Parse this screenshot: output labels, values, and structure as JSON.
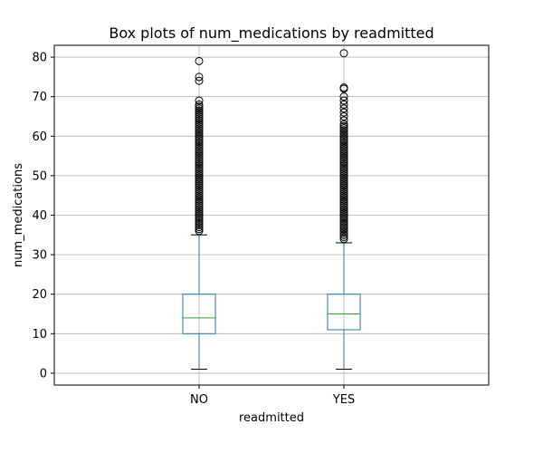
{
  "chart_data": {
    "type": "box",
    "title": "Box plots of num_medications by readmitted",
    "xlabel": "readmitted",
    "ylabel": "num_medications",
    "ylim": [
      -3,
      83
    ],
    "yticks": [
      0,
      10,
      20,
      30,
      40,
      50,
      60,
      70,
      80
    ],
    "grid": true,
    "categories": [
      "NO",
      "YES"
    ],
    "boxes": [
      {
        "name": "NO",
        "whisker_low": 1,
        "q1": 10,
        "median": 14,
        "q3": 20,
        "whisker_high": 35,
        "outliers": [
          36,
          36.5,
          37,
          37.5,
          38,
          38.5,
          39,
          39.5,
          40,
          40.5,
          41,
          41.5,
          42,
          42.5,
          43,
          43.5,
          44,
          44.5,
          45,
          45.5,
          46,
          46.5,
          47,
          47.5,
          48,
          48.5,
          49,
          49.5,
          50,
          50.5,
          51,
          51.5,
          52,
          52.5,
          53,
          53.5,
          54,
          54.5,
          55,
          55.5,
          56,
          56.5,
          57,
          57.5,
          58,
          58.5,
          59,
          59.5,
          60,
          60.5,
          61,
          61.5,
          62,
          62.5,
          63,
          63.5,
          64,
          64.5,
          65,
          65.5,
          66,
          66.5,
          67,
          67.5,
          68,
          69,
          74,
          75,
          79
        ]
      },
      {
        "name": "YES",
        "whisker_low": 1,
        "q1": 11,
        "median": 15,
        "q3": 20,
        "whisker_high": 33,
        "outliers": [
          34,
          34.5,
          35,
          35.5,
          36,
          36.5,
          37,
          37.5,
          38,
          38.5,
          39,
          39.5,
          40,
          40.5,
          41,
          41.5,
          42,
          42.5,
          43,
          43.5,
          44,
          44.5,
          45,
          45.5,
          46,
          46.5,
          47,
          47.5,
          48,
          48.5,
          49,
          49.5,
          50,
          50.5,
          51,
          51.5,
          52,
          52.5,
          53,
          53.5,
          54,
          54.5,
          55,
          55.5,
          56,
          56.5,
          57,
          57.5,
          58,
          58.5,
          59,
          59.5,
          60,
          60.5,
          61,
          61.5,
          62,
          62.5,
          63,
          64,
          65,
          66,
          67,
          68,
          69,
          70,
          72,
          72.3,
          81
        ]
      }
    ],
    "colors": {
      "box": "#1f77b4",
      "median": "#2ca02c",
      "whisker": "#1f77b4",
      "cap": "#000000",
      "flier": "#000000",
      "grid": "#b0b0b0",
      "axes": "#000000"
    }
  }
}
